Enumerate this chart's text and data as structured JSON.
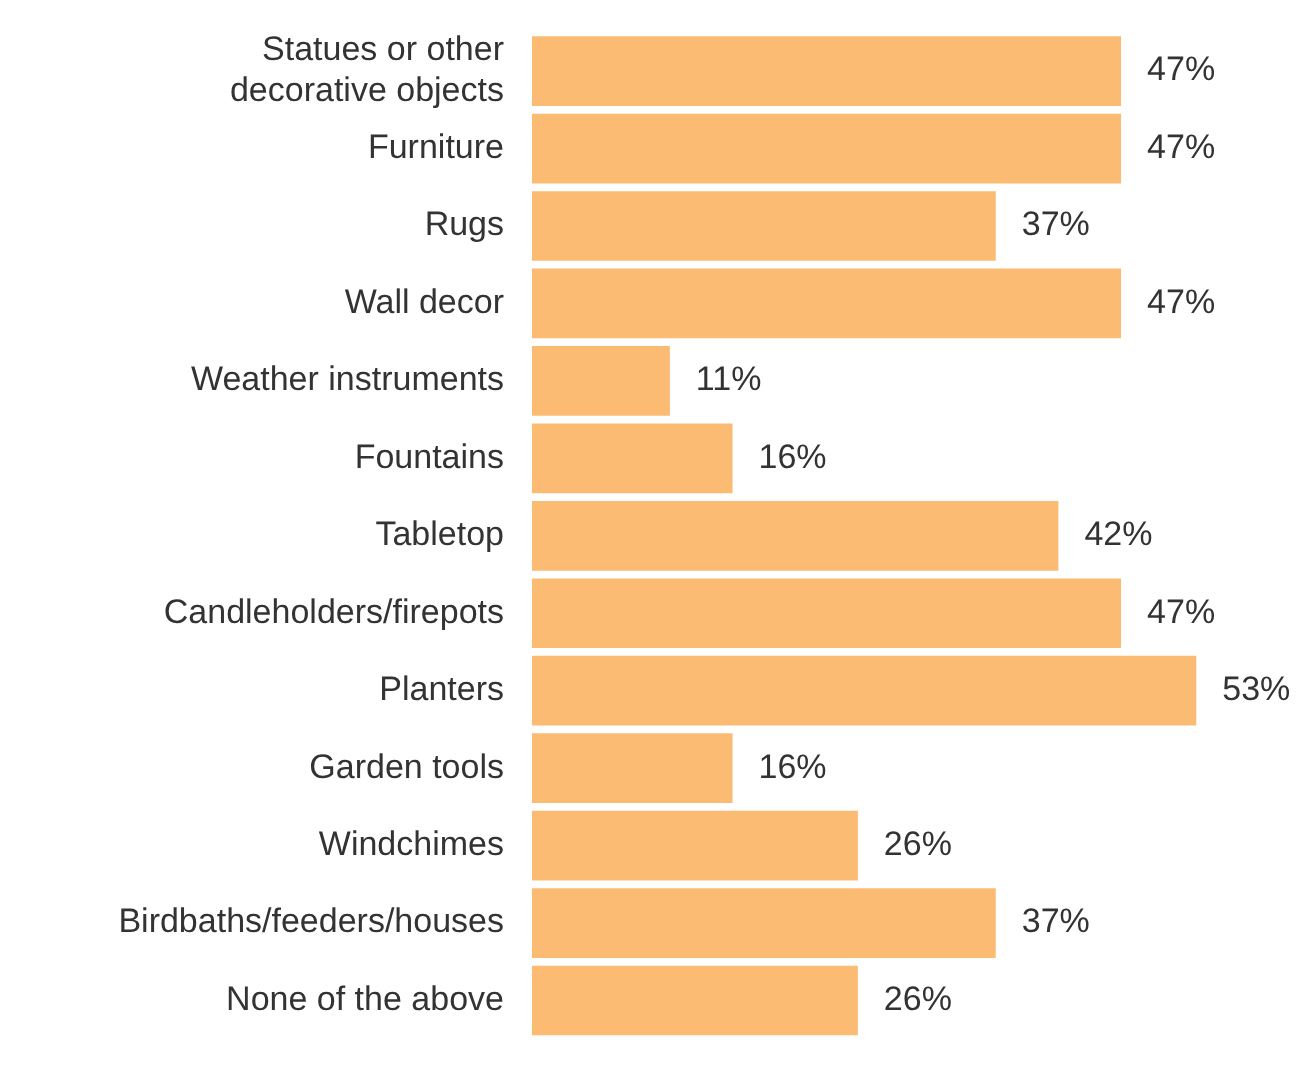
{
  "chart_data": {
    "type": "bar",
    "orientation": "horizontal",
    "categories": [
      "Statues or other decorative objects",
      "Furniture",
      "Rugs",
      "Wall decor",
      "Weather instruments",
      "Fountains",
      "Tabletop",
      "Candleholders/firepots",
      "Planters",
      "Garden tools",
      "Windchimes",
      "Birdbaths/feeders/houses",
      "None of the above"
    ],
    "values": [
      47,
      47,
      37,
      47,
      11,
      16,
      42,
      47,
      53,
      16,
      26,
      37,
      26
    ],
    "value_labels": [
      "47%",
      "47%",
      "37%",
      "47%",
      "11%",
      "16%",
      "42%",
      "47%",
      "53%",
      "16%",
      "26%",
      "37%",
      "26%"
    ],
    "color": "#fbbb73"
  }
}
